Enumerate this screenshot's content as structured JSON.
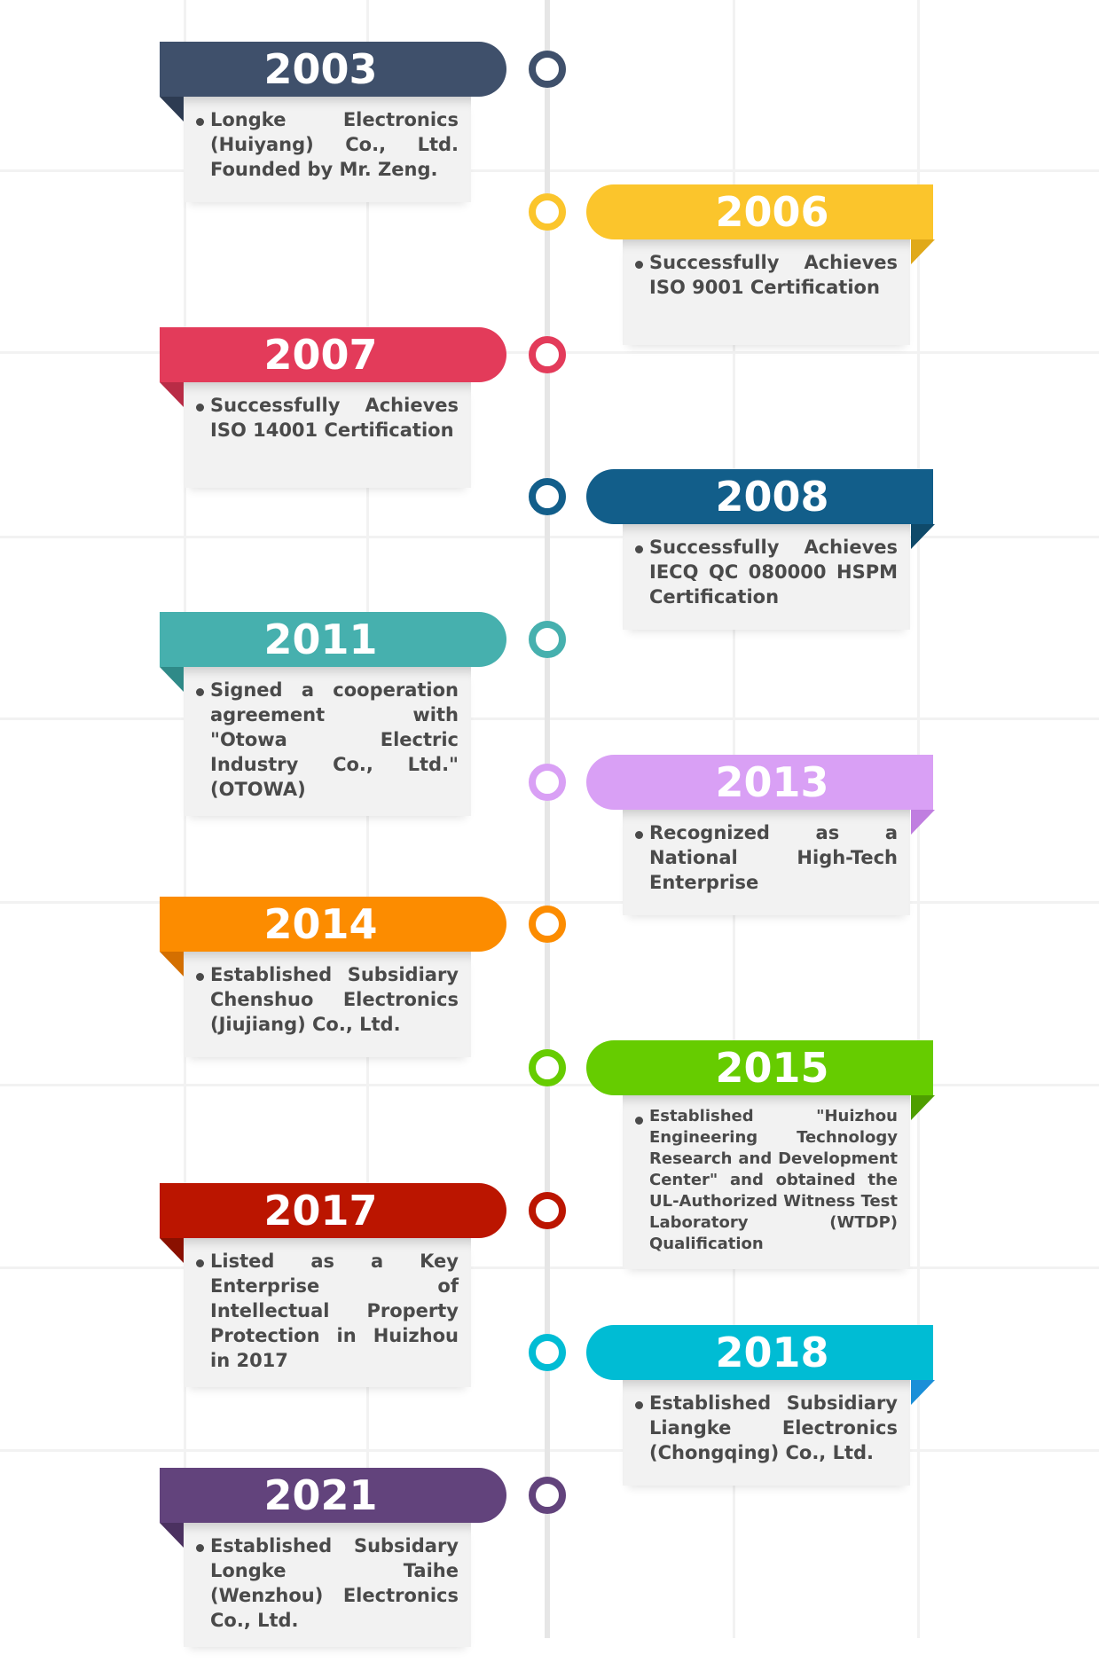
{
  "timeline": [
    {
      "year": "2003",
      "text": "Longke Electronics (Huiyang) Co., Ltd. Founded by Mr. Zeng.",
      "color": "#3f506b",
      "fold": "#2d3b52",
      "side": "left"
    },
    {
      "year": "2006",
      "text": "Successfully Achieves ISO 9001 Certification",
      "color": "#fbc52c",
      "fold": "#e0a91a",
      "side": "right"
    },
    {
      "year": "2007",
      "text": "Successfully Achieves ISO 14001 Certification",
      "color": "#e33b5a",
      "fold": "#b92c46",
      "side": "left"
    },
    {
      "year": "2008",
      "text": "Successfully Achieves IECQ QC 080000 HSPM Certification",
      "color": "#125e8a",
      "fold": "#0f4a6a",
      "side": "right"
    },
    {
      "year": "2011",
      "text": "Signed a cooperation agreement with \"Otowa Electric Industry Co., Ltd.\" (OTOWA)",
      "color": "#46b0ae",
      "fold": "#2f8a88",
      "side": "left"
    },
    {
      "year": "2013",
      "text": "Recognized as a National High-Tech Enterprise",
      "color": "#d9a0f5",
      "fold": "#c07ee0",
      "side": "right"
    },
    {
      "year": "2014",
      "text": "Established Subsidiary Chenshuo Electronics (Jiujiang) Co., Ltd.",
      "color": "#fc8c00",
      "fold": "#d46f00",
      "side": "left"
    },
    {
      "year": "2015",
      "text": "Established \"Huizhou Engineering Technology Research and Development Center\" and obtained the UL-Authorized Witness Test Laboratory (WTDP) Qualification",
      "color": "#66cc00",
      "fold": "#4e9e00",
      "side": "right"
    },
    {
      "year": "2017",
      "text": "Listed as a Key Enterprise of Intellectual Property Protection in Huizhou in 2017",
      "color": "#bb1500",
      "fold": "#8a1000",
      "side": "left"
    },
    {
      "year": "2018",
      "text": "Established Subsidiary Liangke Electronics (Chongqing) Co., Ltd.",
      "color": "#00bcd4",
      "fold": "#1a8fd8",
      "side": "right"
    },
    {
      "year": "2021",
      "text": "Established Subsidary Longke Taihe (Wenzhou) Electronics Co., Ltd.",
      "color": "#62437c",
      "fold": "#4b3160",
      "side": "left"
    }
  ]
}
